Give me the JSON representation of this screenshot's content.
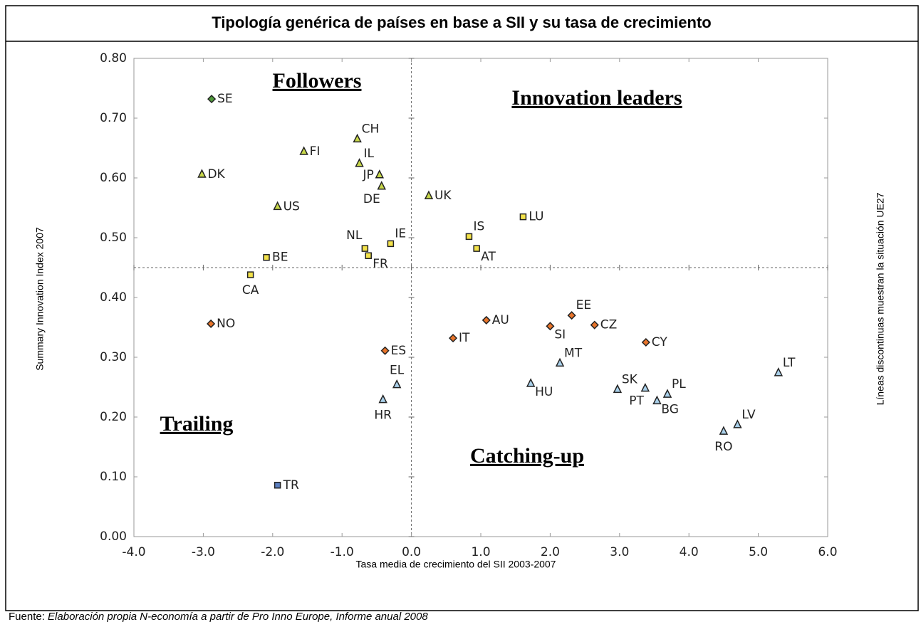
{
  "chart_data": {
    "type": "scatter",
    "title": "Tipología genérica de países en base a SII y su tasa de crecimiento",
    "x_label": "Tasa media de crecimiento del SII 2003-2007",
    "y_label": "Summary Innovation Index 2007",
    "y2_label": "Líneas discontinuas muestran la situación UE27",
    "source_prefix": "Fuente:",
    "source": "Elaboración propia N-economía a partir de Pro Inno Europe, Informe anual 2008",
    "annotations": [
      "Followers",
      "Innovation leaders",
      "Trailing",
      "Catching-up"
    ],
    "xlim": [
      -4,
      6
    ],
    "xticks": [
      {
        "value": -4,
        "label": "-4.0"
      },
      {
        "value": -3,
        "label": "-3.0"
      },
      {
        "value": -2,
        "label": "-2.0"
      },
      {
        "value": -1,
        "label": "-1.0"
      },
      {
        "value": 0,
        "label": "0.0"
      },
      {
        "value": 1,
        "label": "1.0"
      },
      {
        "value": 2,
        "label": "2.0"
      },
      {
        "value": 3,
        "label": "3.0"
      },
      {
        "value": 4,
        "label": "4.0"
      },
      {
        "value": 5,
        "label": "5.0"
      },
      {
        "value": 6,
        "label": "6.0"
      }
    ],
    "ylim": [
      0,
      0.8
    ],
    "yticks": [
      {
        "value": 0,
        "label": "0.00"
      },
      {
        "value": 0.1,
        "label": "0.10"
      },
      {
        "value": 0.2,
        "label": "0.20"
      },
      {
        "value": 0.3,
        "label": "0.30"
      },
      {
        "value": 0.4,
        "label": "0.40"
      },
      {
        "value": 0.5,
        "label": "0.50"
      },
      {
        "value": 0.6,
        "label": "0.60"
      },
      {
        "value": 0.7,
        "label": "0.70"
      },
      {
        "value": 0.8,
        "label": "0.80"
      }
    ],
    "reference_x": 0,
    "reference_y": 0.45,
    "series": [
      {
        "color": "#4f9a3a",
        "marker": "diamond",
        "labels": [
          "SE"
        ],
        "x": [
          -2.88
        ],
        "values": [
          0.732
        ]
      },
      {
        "color": "#c8d84a",
        "marker": "triangle",
        "labels": [
          "CH",
          "FI",
          "IL",
          "JP",
          "DE",
          "DK",
          "US",
          "UK"
        ],
        "x": [
          -0.78,
          -1.55,
          -0.75,
          -0.46,
          -0.43,
          -3.02,
          -1.93,
          0.25
        ],
        "values": [
          0.665,
          0.644,
          0.624,
          0.605,
          0.586,
          0.606,
          0.552,
          0.57
        ]
      },
      {
        "color": "#f3e24a",
        "marker": "square",
        "labels": [
          "NL",
          "IE",
          "FR",
          "BE",
          "CA",
          "IS",
          "AT",
          "LU"
        ],
        "x": [
          -0.67,
          -0.3,
          -0.62,
          -2.09,
          -2.32,
          0.83,
          0.94,
          1.61
        ],
        "values": [
          0.482,
          0.49,
          0.47,
          0.467,
          0.438,
          0.502,
          0.482,
          0.535
        ]
      },
      {
        "color": "#e8742a",
        "marker": "diamond",
        "labels": [
          "NO",
          "ES",
          "IT",
          "AU",
          "SI",
          "EE",
          "CZ",
          "CY"
        ],
        "x": [
          -2.89,
          -0.38,
          0.6,
          1.08,
          2.0,
          2.31,
          2.64,
          3.38
        ],
        "values": [
          0.356,
          0.311,
          0.332,
          0.362,
          0.352,
          0.37,
          0.354,
          0.325
        ]
      },
      {
        "color": "#a9d0ea",
        "marker": "triangle",
        "labels": [
          "HR",
          "EL",
          "HU",
          "MT",
          "SK",
          "PT",
          "BG",
          "PL",
          "RO",
          "LV",
          "LT"
        ],
        "x": [
          -0.41,
          -0.21,
          1.72,
          2.14,
          2.97,
          3.37,
          3.54,
          3.69,
          4.5,
          4.7,
          5.29
        ],
        "values": [
          0.229,
          0.254,
          0.256,
          0.29,
          0.246,
          0.248,
          0.227,
          0.238,
          0.176,
          0.187,
          0.274
        ]
      },
      {
        "color": "#5b7fc0",
        "marker": "square",
        "labels": [
          "TR"
        ],
        "x": [
          -1.93
        ],
        "values": [
          0.086
        ]
      }
    ]
  }
}
